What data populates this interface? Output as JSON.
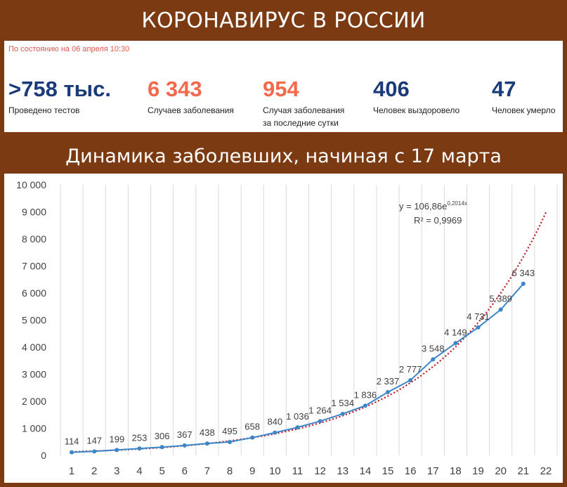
{
  "header": {
    "title": "КОРОНАВИРУС В РОССИИ"
  },
  "stats": {
    "as_of": "По состоянию на 06 апреля 10:30",
    "items": [
      {
        "value": ">758 тыс.",
        "label": "Проведено тестов",
        "color": "#1b3a7a"
      },
      {
        "value": "6 343",
        "label": "Случаев заболевания",
        "color": "#f26a4b"
      },
      {
        "value": "954",
        "label": "Случая заболевания за последние сутки",
        "color": "#f26a4b"
      },
      {
        "value": "406",
        "label": "Человек выздоровело",
        "color": "#1b3a7a"
      },
      {
        "value": "47",
        "label": "Человек умерло",
        "color": "#1b3a7a"
      }
    ]
  },
  "chart_section": {
    "title": "Динамика заболевших, начиная с 17 марта"
  },
  "chart_data": {
    "type": "line",
    "x": [
      1,
      2,
      3,
      4,
      5,
      6,
      7,
      8,
      9,
      10,
      11,
      12,
      13,
      14,
      15,
      16,
      17,
      18,
      19,
      20,
      21
    ],
    "x_ticks": [
      1,
      2,
      3,
      4,
      5,
      6,
      7,
      8,
      9,
      10,
      11,
      12,
      13,
      14,
      15,
      16,
      17,
      18,
      19,
      20,
      21,
      22
    ],
    "series": [
      {
        "values": [
          114,
          147,
          199,
          253,
          306,
          367,
          438,
          495,
          658,
          840,
          1036,
          1264,
          1534,
          1836,
          2337,
          2777,
          3548,
          4149,
          4731,
          5389,
          6343
        ],
        "color": "#3a86c8"
      }
    ],
    "data_labels": [
      "114",
      "147",
      "199",
      "253",
      "306",
      "367",
      "438",
      "495",
      "658",
      "840",
      "1 036",
      "1 264",
      "1 534",
      "1 836",
      "2 337",
      "2 777",
      "3 548",
      "4 149",
      "4 731",
      "5 389",
      "6 343"
    ],
    "trendline": {
      "type": "exponential",
      "a": 106.86,
      "b": 0.2014,
      "x_range": [
        1,
        22
      ],
      "color": "#c0151b",
      "style": "dotted"
    },
    "annotation": {
      "equation_prefix": "y = 106,86e",
      "equation_exponent": "0,2014x",
      "r_squared": "R² = 0,9969"
    },
    "ylim": [
      0,
      10000
    ],
    "y_ticks": [
      0,
      1000,
      2000,
      3000,
      4000,
      5000,
      6000,
      7000,
      8000,
      9000,
      10000
    ],
    "y_tick_labels": [
      "0",
      "1 000",
      "2 000",
      "3 000",
      "4 000",
      "5 000",
      "6 000",
      "7 000",
      "8 000",
      "9 000",
      "10 000"
    ],
    "xlim": [
      0.5,
      22.5
    ],
    "grid": {
      "vertical": true,
      "horizontal": false,
      "color": "#d9d9d9"
    }
  }
}
